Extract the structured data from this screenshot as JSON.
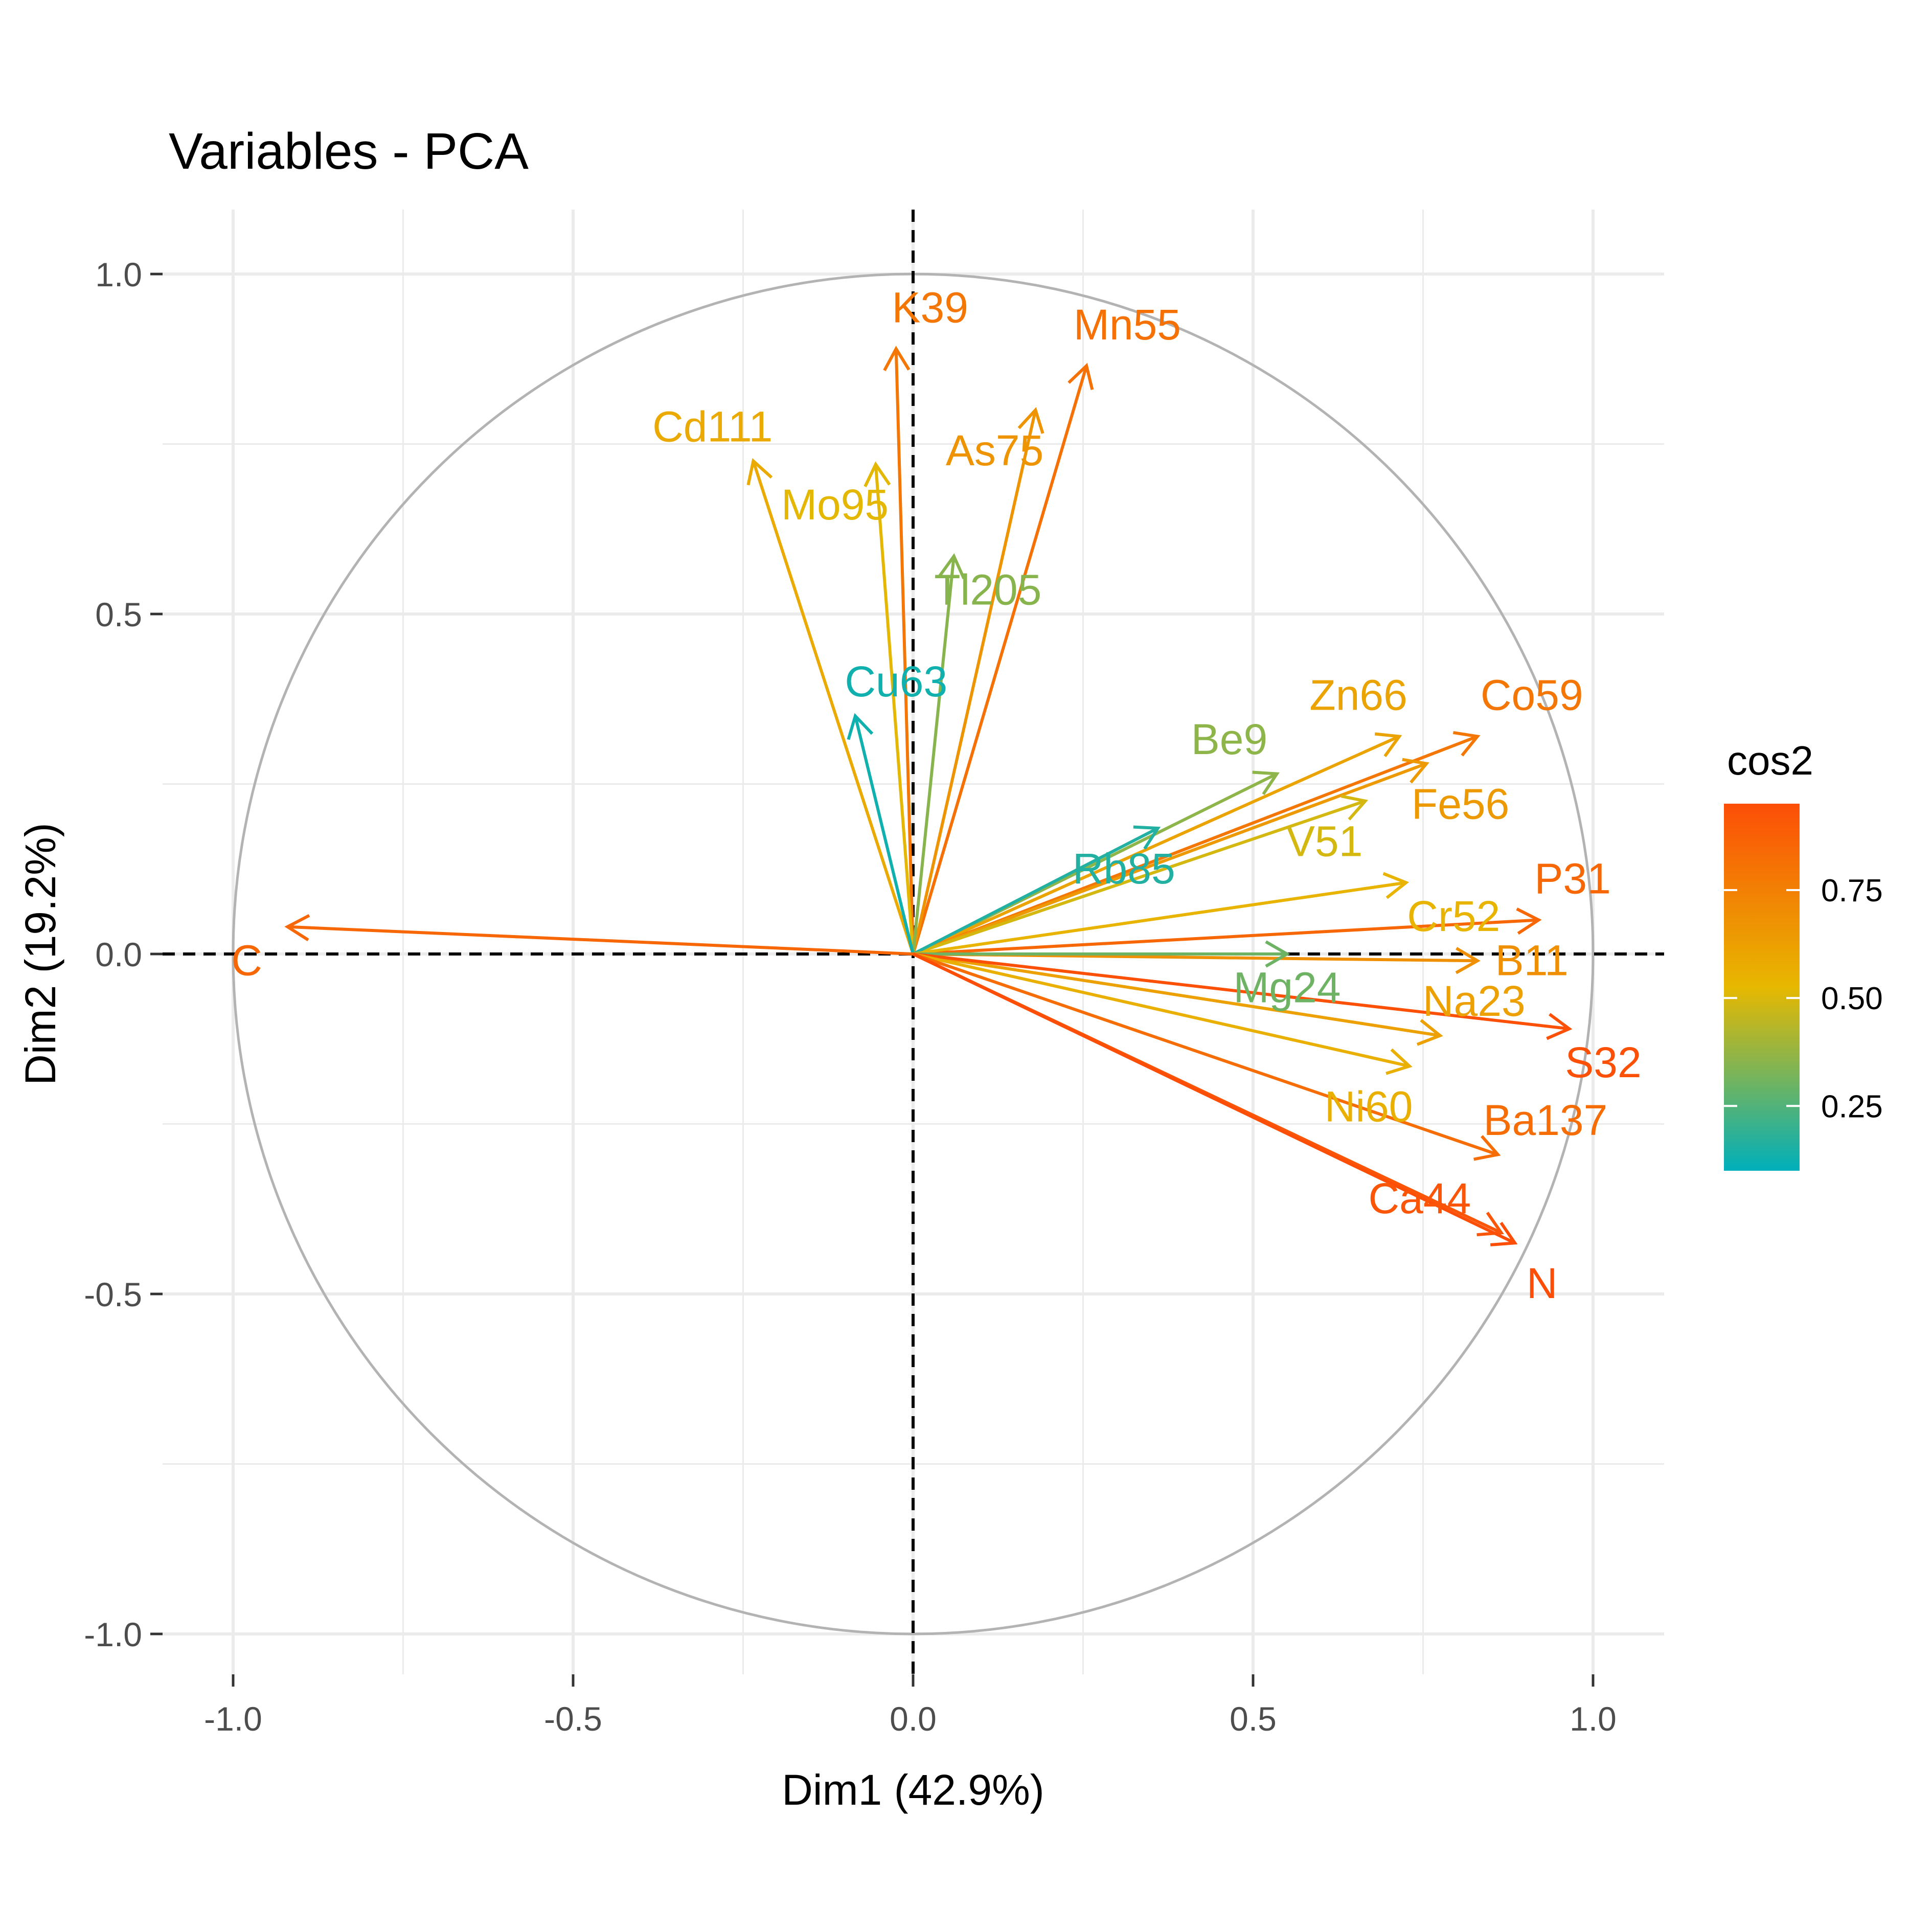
{
  "chart_data": {
    "type": "scatter",
    "title": "Variables - PCA",
    "xlabel": "Dim1 (42.9%)",
    "ylabel": "Dim2 (19.2%)",
    "xlim": [
      -1.1,
      1.1
    ],
    "ylim": [
      -1.1,
      1.1
    ],
    "x_ticks": [
      -1.0,
      -0.5,
      0.0,
      0.5,
      1.0
    ],
    "y_ticks": [
      -1.0,
      -0.5,
      0.0,
      0.5,
      1.0
    ],
    "x_tick_labels": [
      "-1.0",
      "-0.5",
      "0.0",
      "0.5",
      "1.0"
    ],
    "y_tick_labels": [
      "-1.0",
      "-0.5",
      "0.0",
      "0.5",
      "1.0"
    ],
    "grid": true,
    "unit_circle": true,
    "legend": {
      "title": "cos2",
      "position": "right",
      "range": [
        0.1,
        0.95
      ],
      "ticks": [
        0.25,
        0.5,
        0.75
      ],
      "tick_labels": [
        "0.25",
        "0.50",
        "0.75"
      ],
      "colors": [
        "#00AFBB",
        "#E7B800",
        "#FC4E07"
      ]
    },
    "variables": [
      {
        "name": "K39",
        "x": -0.025,
        "y": 0.89,
        "cos2": 0.79
      },
      {
        "name": "Mn55",
        "x": 0.255,
        "y": 0.865,
        "cos2": 0.81
      },
      {
        "name": "Cd111",
        "x": -0.235,
        "y": 0.725,
        "cos2": 0.58
      },
      {
        "name": "As75",
        "x": 0.18,
        "y": 0.8,
        "cos2": 0.67
      },
      {
        "name": "Mo95",
        "x": -0.055,
        "y": 0.72,
        "cos2": 0.52
      },
      {
        "name": "Tl205",
        "x": 0.06,
        "y": 0.585,
        "cos2": 0.35
      },
      {
        "name": "Cu63",
        "x": -0.085,
        "y": 0.35,
        "cos2": 0.13
      },
      {
        "name": "Be9",
        "x": 0.535,
        "y": 0.265,
        "cos2": 0.36
      },
      {
        "name": "Zn66",
        "x": 0.715,
        "y": 0.32,
        "cos2": 0.61
      },
      {
        "name": "Co59",
        "x": 0.83,
        "y": 0.32,
        "cos2": 0.79
      },
      {
        "name": "Fe56",
        "x": 0.755,
        "y": 0.28,
        "cos2": 0.65
      },
      {
        "name": "V51",
        "x": 0.665,
        "y": 0.225,
        "cos2": 0.49
      },
      {
        "name": "Rb85",
        "x": 0.36,
        "y": 0.185,
        "cos2": 0.16
      },
      {
        "name": "P31",
        "x": 0.92,
        "y": 0.05,
        "cos2": 0.85
      },
      {
        "name": "Cr52",
        "x": 0.725,
        "y": 0.105,
        "cos2": 0.54
      },
      {
        "name": "B11",
        "x": 0.83,
        "y": -0.01,
        "cos2": 0.69
      },
      {
        "name": "Mg24",
        "x": 0.55,
        "y": 0.0,
        "cos2": 0.3
      },
      {
        "name": "Na23",
        "x": 0.775,
        "y": -0.12,
        "cos2": 0.62
      },
      {
        "name": "S32",
        "x": 0.965,
        "y": -0.11,
        "cos2": 0.94
      },
      {
        "name": "Ni60",
        "x": 0.73,
        "y": -0.165,
        "cos2": 0.56
      },
      {
        "name": "Ba137",
        "x": 0.86,
        "y": -0.295,
        "cos2": 0.83
      },
      {
        "name": "Ca44",
        "x": 0.865,
        "y": -0.41,
        "cos2": 0.92
      },
      {
        "name": "N",
        "x": 0.885,
        "y": -0.425,
        "cos2": 0.96
      },
      {
        "name": "C",
        "x": -0.92,
        "y": 0.04,
        "cos2": 0.85
      }
    ],
    "label_offsets": {
      "K39": [
        0.05,
        0.06
      ],
      "Mn55": [
        0.06,
        0.06
      ],
      "Cd111": [
        -0.06,
        0.05
      ],
      "As75": [
        -0.06,
        -0.06
      ],
      "Mo95": [
        -0.06,
        -0.06
      ],
      "Tl205": [
        0.05,
        -0.05
      ],
      "Cu63": [
        0.06,
        0.05
      ],
      "Be9": [
        -0.07,
        0.05
      ],
      "Zn66": [
        -0.06,
        0.06
      ],
      "Co59": [
        0.08,
        0.06
      ],
      "Fe56": [
        0.05,
        -0.06
      ],
      "V51": [
        -0.06,
        -0.06
      ],
      "Rb85": [
        -0.05,
        -0.06
      ],
      "P31": [
        0.05,
        0.06
      ],
      "Cr52": [
        0.07,
        -0.05
      ],
      "B11": [
        0.08,
        0.0
      ],
      "Mg24": [
        0.0,
        -0.05
      ],
      "Na23": [
        0.05,
        0.05
      ],
      "S32": [
        0.05,
        -0.05
      ],
      "Ni60": [
        -0.06,
        -0.06
      ],
      "Ba137": [
        0.07,
        0.05
      ],
      "Ca44": [
        -0.12,
        0.05
      ],
      "N": [
        0.04,
        -0.06
      ],
      "C": [
        -0.06,
        -0.05
      ]
    }
  }
}
